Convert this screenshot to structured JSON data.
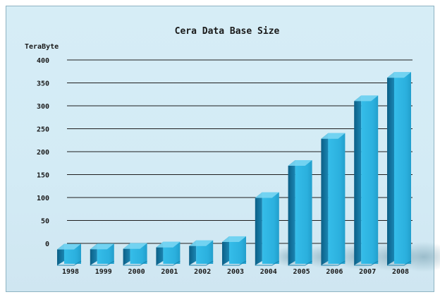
{
  "chart_data": {
    "type": "bar",
    "title": "Cera Data Base Size",
    "ylabel": "TeraByte",
    "xlabel": "",
    "categories": [
      "1998",
      "1999",
      "2000",
      "2001",
      "2002",
      "2003",
      "2004",
      "2005",
      "2006",
      "2007",
      "2008"
    ],
    "values": [
      0.5,
      1,
      2,
      5,
      8,
      17,
      113,
      183,
      242,
      324,
      375
    ],
    "ylim": [
      0,
      400
    ],
    "yticks": [
      0,
      50,
      100,
      150,
      200,
      250,
      300,
      350,
      400
    ],
    "grid": true,
    "legend": "none",
    "colors": {
      "bar_front": "#2eb4e2",
      "bar_side": "#1178a3",
      "bar_top": "#7ad6f3",
      "grid": "#1e1e1e",
      "background": "#d4ecf6"
    }
  }
}
